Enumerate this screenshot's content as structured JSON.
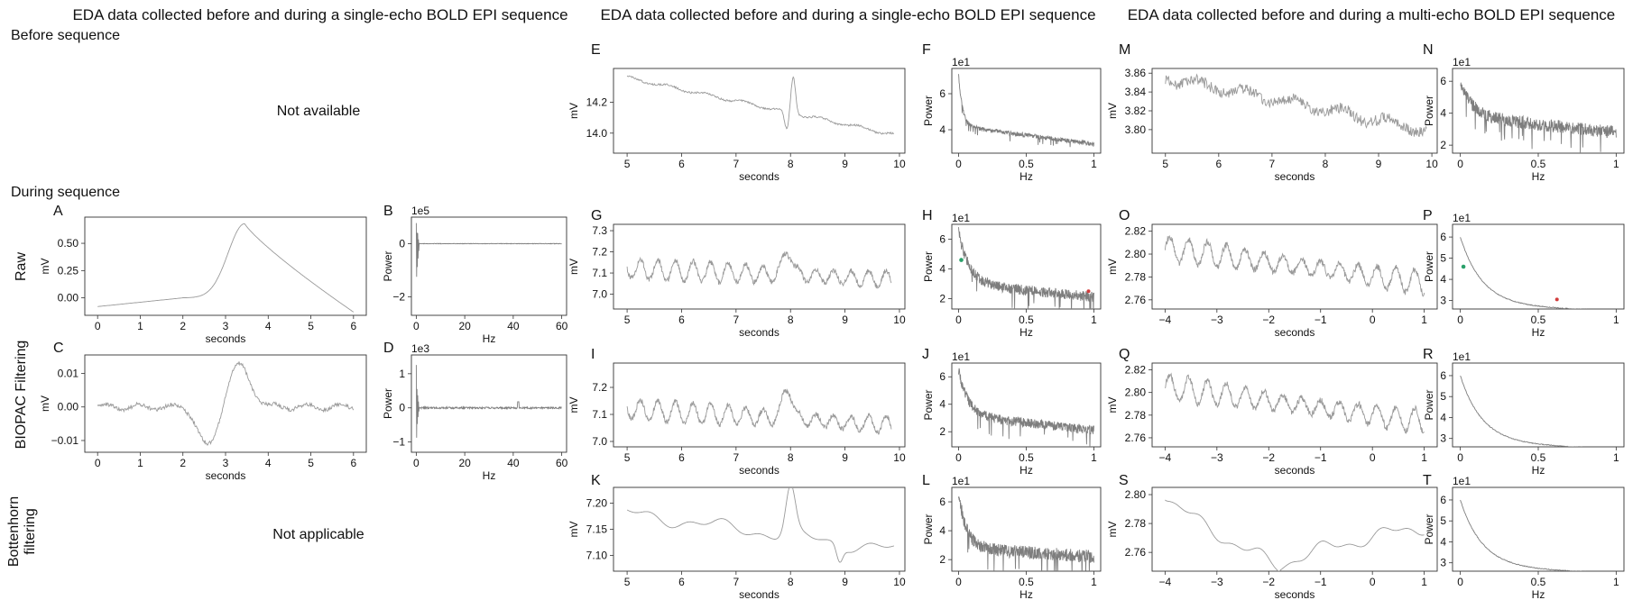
{
  "headers": [
    "EDA data collected before and during a single-echo BOLD EPI sequence",
    "EDA data collected before and during a single-echo BOLD EPI sequence",
    "EDA data collected before and during a multi-echo BOLD EPI sequence"
  ],
  "sections": {
    "before": "Before  sequence",
    "during": "During  sequence"
  },
  "row_labels": {
    "raw": "Raw",
    "biopac": "BIOPAC Filtering",
    "bottenhorn": [
      "Bottenhorn",
      "filtering"
    ]
  },
  "notes": {
    "not_available": "Not available",
    "not_applicable": "Not applicable"
  },
  "colors": {
    "trace": "#9a9a9a",
    "spectrum": "#7e7e7e",
    "axis": "#333333",
    "green_dot": "#2aa06a",
    "red_dot": "#d23c3c"
  },
  "chart_data": [
    {
      "id": "A",
      "label": "A",
      "type": "line",
      "xlabel": "seconds",
      "ylabel": "mV",
      "xlim": [
        -0.3,
        6.3
      ],
      "ylim": [
        -0.16,
        0.74
      ],
      "xticks": [
        0,
        1,
        2,
        3,
        4,
        5,
        6
      ],
      "yticks": [
        -0.0,
        0.25,
        0.5
      ],
      "ytick_labels": [
        "0.00",
        "0.25",
        "0.50"
      ],
      "signal": "gauss_bump",
      "x_range": [
        0,
        6
      ],
      "params": {
        "base_start": -0.08,
        "base_end": 0.0,
        "peak_x": 3.45,
        "peak_y": 0.68,
        "end_y": -0.13
      }
    },
    {
      "id": "B",
      "label": "B",
      "type": "line",
      "xlabel": "Hz",
      "ylabel": "Power",
      "scale_text": "1e5",
      "xlim": [
        -2,
        62
      ],
      "ylim": [
        -2.7,
        1.0
      ],
      "xticks": [
        0,
        20,
        40,
        60
      ],
      "yticks": [
        0,
        -2
      ],
      "ytick_labels": [
        "0",
        "−2"
      ],
      "signal": "spike_flat"
    },
    {
      "id": "C",
      "label": "C",
      "type": "line",
      "xlabel": "seconds",
      "ylabel": "mV",
      "xlim": [
        -0.3,
        6.3
      ],
      "ylim": [
        -0.0135,
        0.0155
      ],
      "xticks": [
        0,
        1,
        2,
        3,
        4,
        5,
        6
      ],
      "yticks": [
        -0.01,
        0.0,
        0.01
      ],
      "ytick_labels": [
        "−0.01",
        "0.00",
        "0.01"
      ],
      "signal": "biphasic"
    },
    {
      "id": "D",
      "label": "D",
      "type": "line",
      "xlabel": "Hz",
      "ylabel": "Power",
      "scale_text": "1e3",
      "xlim": [
        -2,
        62
      ],
      "ylim": [
        -1.3,
        1.55
      ],
      "xticks": [
        0,
        20,
        40,
        60
      ],
      "yticks": [
        -1,
        0,
        1
      ],
      "ytick_labels": [
        "−1",
        "0",
        "1"
      ],
      "signal": "spike_flat_small"
    },
    {
      "id": "E",
      "label": "E",
      "type": "line",
      "xlabel": "seconds",
      "ylabel": "mV",
      "xlim": [
        4.75,
        10.1
      ],
      "ylim": [
        13.87,
        14.42
      ],
      "xticks": [
        5,
        6,
        7,
        8,
        9,
        10
      ],
      "yticks": [
        14.0,
        14.2
      ],
      "ytick_labels": [
        "14.0",
        "14.2"
      ],
      "signal": "drift_blip",
      "params": {
        "y0": 14.36,
        "y1": 13.99,
        "blip_x": 8.05,
        "blip_amp": 0.24,
        "noise": 0.012
      }
    },
    {
      "id": "F",
      "label": "F",
      "type": "line",
      "xlabel": "Hz",
      "ylabel": "Power",
      "scale_text": "1e1",
      "xlim": [
        -0.05,
        1.05
      ],
      "ylim": [
        2.7,
        7.4
      ],
      "xticks": [
        0.0,
        0.5,
        1.0
      ],
      "yticks": [
        4,
        6
      ],
      "ytick_labels": [
        "4",
        "6"
      ],
      "signal": "spectrum",
      "params": {
        "start": 7.0,
        "plateau": 4.2,
        "end": 3.2,
        "decay": 0.03,
        "noise": 0.12
      }
    },
    {
      "id": "G",
      "label": "G",
      "type": "line",
      "xlabel": "seconds",
      "ylabel": "mV",
      "xlim": [
        4.75,
        10.1
      ],
      "ylim": [
        6.93,
        7.33
      ],
      "xticks": [
        5,
        6,
        7,
        8,
        9,
        10
      ],
      "yticks": [
        7.0,
        7.1,
        7.2,
        7.3
      ],
      "ytick_labels": [
        "7.0",
        "7.1",
        "7.2",
        "7.3"
      ],
      "signal": "oscillation",
      "params": {
        "mean0": 7.12,
        "mean1": 7.07,
        "amp": 0.05,
        "freq": 6.2,
        "blip_x": 7.95,
        "blip_amp": 0.12
      }
    },
    {
      "id": "H",
      "label": "H",
      "type": "line",
      "xlabel": "Hz",
      "ylabel": "Power",
      "scale_text": "1e1",
      "xlim": [
        -0.05,
        1.05
      ],
      "ylim": [
        1.3,
        7.0
      ],
      "xticks": [
        0.0,
        0.5,
        1.0
      ],
      "yticks": [
        2,
        4,
        6
      ],
      "ytick_labels": [
        "2",
        "4",
        "6"
      ],
      "signal": "spectrum",
      "params": {
        "start": 6.5,
        "plateau": 3.0,
        "end": 2.1,
        "decay": 0.08,
        "noise": 0.35
      },
      "green_dot": [
        0.02,
        4.6
      ],
      "red_dot": [
        0.96,
        2.5
      ]
    },
    {
      "id": "I",
      "label": "I",
      "type": "line",
      "xlabel": "seconds",
      "ylabel": "mV",
      "xlim": [
        4.75,
        10.1
      ],
      "ylim": [
        6.98,
        7.29
      ],
      "xticks": [
        5,
        6,
        7,
        8,
        9,
        10
      ],
      "yticks": [
        7.0,
        7.1,
        7.2
      ],
      "ytick_labels": [
        "7.0",
        "7.1",
        "7.2"
      ],
      "signal": "oscillation",
      "params": {
        "mean0": 7.12,
        "mean1": 7.06,
        "amp": 0.04,
        "freq": 6.2,
        "blip_x": 7.95,
        "blip_amp": 0.12
      }
    },
    {
      "id": "J",
      "label": "J",
      "type": "line",
      "xlabel": "Hz",
      "ylabel": "Power",
      "scale_text": "1e1",
      "xlim": [
        -0.05,
        1.05
      ],
      "ylim": [
        0.9,
        7.0
      ],
      "xticks": [
        0.0,
        0.5,
        1.0
      ],
      "yticks": [
        2,
        4,
        6
      ],
      "ytick_labels": [
        "2",
        "4",
        "6"
      ],
      "signal": "spectrum",
      "params": {
        "start": 6.5,
        "plateau": 3.2,
        "end": 2.1,
        "decay": 0.07,
        "noise": 0.35
      }
    },
    {
      "id": "K",
      "label": "K",
      "type": "line",
      "xlabel": "seconds",
      "ylabel": "mV",
      "xlim": [
        4.75,
        10.1
      ],
      "ylim": [
        7.07,
        7.23
      ],
      "xticks": [
        5,
        6,
        7,
        8,
        9,
        10
      ],
      "yticks": [
        7.1,
        7.15,
        7.2
      ],
      "ytick_labels": [
        "7.10",
        "7.15",
        "7.20"
      ],
      "signal": "smooth_wave",
      "params": {
        "mean0": 7.18,
        "mean1": 7.11,
        "blip_x": 8.0,
        "blip_amp": 0.09
      }
    },
    {
      "id": "L",
      "label": "L",
      "type": "line",
      "xlabel": "Hz",
      "ylabel": "Power",
      "scale_text": "1e1",
      "xlim": [
        -0.05,
        1.05
      ],
      "ylim": [
        1.2,
        7.0
      ],
      "xticks": [
        0.0,
        0.5,
        1.0
      ],
      "yticks": [
        2,
        4,
        6
      ],
      "ytick_labels": [
        "2",
        "4",
        "6"
      ],
      "signal": "spectrum",
      "params": {
        "start": 6.6,
        "plateau": 2.8,
        "end": 2.2,
        "decay": 0.06,
        "noise": 0.45
      }
    },
    {
      "id": "M",
      "label": "M",
      "type": "line",
      "xlabel": "seconds",
      "ylabel": "mV",
      "xlim": [
        4.75,
        10.1
      ],
      "ylim": [
        3.775,
        3.865
      ],
      "xticks": [
        5,
        6,
        7,
        8,
        9,
        10
      ],
      "yticks": [
        3.8,
        3.82,
        3.84,
        3.86
      ],
      "ytick_labels": [
        "3.80",
        "3.82",
        "3.84",
        "3.86"
      ],
      "signal": "drift_noise",
      "params": {
        "y0": 3.855,
        "y1": 3.8,
        "noise": 0.006
      }
    },
    {
      "id": "N",
      "label": "N",
      "type": "line",
      "xlabel": "Hz",
      "ylabel": "Power",
      "scale_text": "1e1",
      "xlim": [
        -0.05,
        1.05
      ],
      "ylim": [
        1.5,
        6.8
      ],
      "xticks": [
        0.0,
        0.5,
        1.0
      ],
      "yticks": [
        2,
        4,
        6
      ],
      "ytick_labels": [
        "2",
        "4",
        "6"
      ],
      "signal": "spectrum",
      "params": {
        "start": 6.0,
        "plateau": 3.8,
        "end": 2.8,
        "decay": 0.08,
        "noise": 0.4
      }
    },
    {
      "id": "O",
      "label": "O",
      "type": "line",
      "xlabel": "seconds",
      "ylabel": "mV",
      "xlim": [
        -4.25,
        1.25
      ],
      "ylim": [
        2.752,
        2.826
      ],
      "xticks": [
        -4,
        -3,
        -2,
        -1,
        0,
        1
      ],
      "xtick_labels": [
        "−4",
        "−3",
        "−2",
        "−1",
        "0",
        "1"
      ],
      "yticks": [
        2.76,
        2.78,
        2.8,
        2.82
      ],
      "ytick_labels": [
        "2.76",
        "2.78",
        "2.80",
        "2.82"
      ],
      "signal": "oscillation",
      "params": {
        "mean0": 2.805,
        "mean1": 2.775,
        "amp": 0.011,
        "freq": 5.5,
        "blip_x": -99,
        "blip_amp": 0
      }
    },
    {
      "id": "P",
      "label": "P",
      "type": "line",
      "xlabel": "Hz",
      "ylabel": "Power",
      "scale_text": "1e1",
      "xlim": [
        -0.05,
        1.05
      ],
      "ylim": [
        2.6,
        6.6
      ],
      "xticks": [
        0.0,
        0.5,
        1.0
      ],
      "yticks": [
        3,
        4,
        5,
        6
      ],
      "ytick_labels": [
        "3",
        "4",
        "5",
        "6"
      ],
      "signal": "smooth_spectrum",
      "params": {
        "start": 6.0,
        "end": 2.8,
        "k": 0.14
      },
      "green_dot": [
        0.02,
        4.6
      ],
      "red_dot": [
        0.62,
        3.05
      ]
    },
    {
      "id": "Q",
      "label": "Q",
      "type": "line",
      "xlabel": "seconds",
      "ylabel": "mV",
      "xlim": [
        -4.25,
        1.25
      ],
      "ylim": [
        2.752,
        2.826
      ],
      "xticks": [
        -4,
        -3,
        -2,
        -1,
        0,
        1
      ],
      "xtick_labels": [
        "−4",
        "−3",
        "−2",
        "−1",
        "0",
        "1"
      ],
      "yticks": [
        2.76,
        2.78,
        2.8,
        2.82
      ],
      "ytick_labels": [
        "2.76",
        "2.78",
        "2.80",
        "2.82"
      ],
      "signal": "oscillation",
      "params": {
        "mean0": 2.805,
        "mean1": 2.774,
        "amp": 0.011,
        "freq": 5.5,
        "blip_x": -99,
        "blip_amp": 0
      }
    },
    {
      "id": "R",
      "label": "R",
      "type": "line",
      "xlabel": "Hz",
      "ylabel": "Power",
      "scale_text": "1e1",
      "xlim": [
        -0.05,
        1.05
      ],
      "ylim": [
        2.6,
        6.6
      ],
      "xticks": [
        0.0,
        0.5,
        1.0
      ],
      "yticks": [
        3,
        4,
        5,
        6
      ],
      "ytick_labels": [
        "3",
        "4",
        "5",
        "6"
      ],
      "signal": "smooth_spectrum",
      "params": {
        "start": 6.0,
        "end": 2.8,
        "k": 0.14
      }
    },
    {
      "id": "S",
      "label": "S",
      "type": "line",
      "xlabel": "seconds",
      "ylabel": "mV",
      "xlim": [
        -4.25,
        1.25
      ],
      "ylim": [
        2.747,
        2.805
      ],
      "xticks": [
        -4,
        -3,
        -2,
        -1,
        0,
        1
      ],
      "xtick_labels": [
        "−4",
        "−3",
        "−2",
        "−1",
        "0",
        "1"
      ],
      "yticks": [
        2.76,
        2.78,
        2.8
      ],
      "ytick_labels": [
        "2.76",
        "2.78",
        "2.80"
      ],
      "signal": "smooth_dip",
      "params": {
        "y0": 2.8,
        "ymin": 2.75,
        "xmin": -1.8,
        "y1": 2.778
      }
    },
    {
      "id": "T",
      "label": "T",
      "type": "line",
      "xlabel": "Hz",
      "ylabel": "Power",
      "scale_text": "1e1",
      "xlim": [
        -0.05,
        1.05
      ],
      "ylim": [
        2.6,
        6.6
      ],
      "xticks": [
        0.0,
        0.5,
        1.0
      ],
      "yticks": [
        3,
        4,
        5,
        6
      ],
      "ytick_labels": [
        "3",
        "4",
        "5",
        "6"
      ],
      "signal": "smooth_spectrum",
      "params": {
        "start": 6.0,
        "end": 2.8,
        "k": 0.14
      }
    }
  ]
}
